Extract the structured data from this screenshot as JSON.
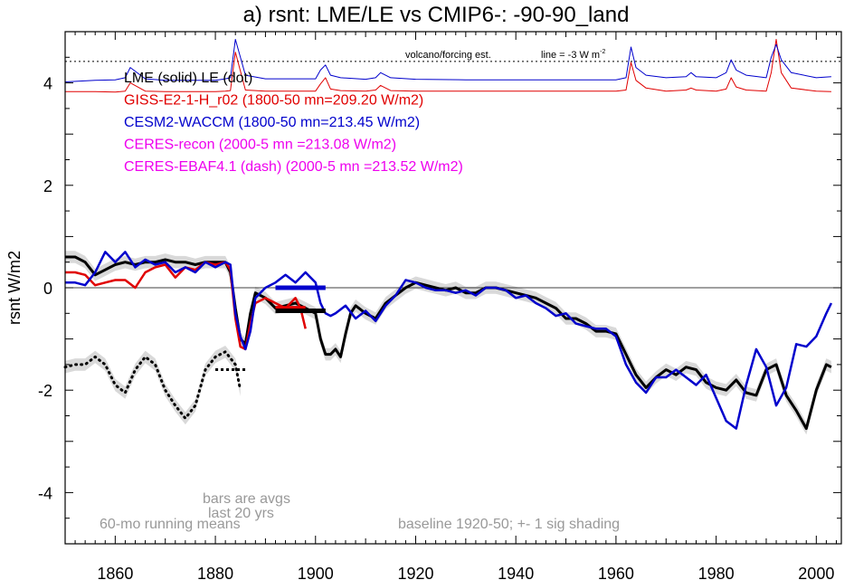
{
  "chart_data": {
    "type": "line",
    "title": "a) rsnt: LME/LE vs CMIP6-: -90-90_land",
    "ylabel": "rsnt W/m2",
    "xlabel": "",
    "xlim": [
      1850,
      2005
    ],
    "ylim": [
      -5,
      5
    ],
    "x_ticks": [
      1860,
      1880,
      1900,
      1920,
      1940,
      1960,
      1980,
      2000
    ],
    "y_ticks": [
      -4,
      -2,
      0,
      2,
      4
    ],
    "legend_placement": "top-left",
    "grid": false,
    "reference_line_y": 0,
    "volcano_label": "volcano/forcing est.",
    "volcano_note": "line = -3 W m",
    "volcano_note_sup": "-2",
    "legend": [
      {
        "label": "LME (solid)   LE (dot)",
        "color": "#000000"
      },
      {
        "label": "GISS-E2-1-H_r02 (1800-50 mn=209.20 W/m2)",
        "color": "#e00000"
      },
      {
        "label": "CESM2-WACCM (1800-50 mn=213.45 W/m2)",
        "color": "#0000cc"
      },
      {
        "label": "CERES-recon (2000-5 mn =213.08 W/m2)",
        "color": "#ee00ee"
      },
      {
        "label": "CERES-EBAF4.1 (dash) (2000-5 mn =213.52 W/m2)",
        "color": "#ee00ee"
      }
    ],
    "annotations": {
      "bars_note_1": "bars are avgs",
      "bars_note_2": "last 20 yrs",
      "running_means": "60-mo running means",
      "baseline": "baseline 1920-50; +- 1 sig shading"
    },
    "series": [
      {
        "name": "LME (solid)",
        "color": "#000000",
        "style": "solid",
        "x": [
          1850,
          1852,
          1854,
          1856,
          1858,
          1860,
          1862,
          1864,
          1866,
          1868,
          1870,
          1872,
          1874,
          1876,
          1878,
          1880,
          1882,
          1883,
          1884,
          1885,
          1886,
          1887,
          1888,
          1890,
          1892,
          1894,
          1896,
          1898,
          1900,
          1901,
          1902,
          1903,
          1904,
          1905,
          1906,
          1907,
          1908,
          1910,
          1912,
          1914,
          1916,
          1918,
          1920,
          1922,
          1924,
          1926,
          1928,
          1930,
          1932,
          1934,
          1936,
          1938,
          1940,
          1942,
          1944,
          1946,
          1948,
          1950,
          1952,
          1954,
          1956,
          1958,
          1960,
          1962,
          1964,
          1966,
          1968,
          1970,
          1972,
          1974,
          1976,
          1978,
          1980,
          1982,
          1984,
          1986,
          1988,
          1990,
          1992,
          1994,
          1996,
          1998,
          2000,
          2002,
          2003
        ],
        "values": [
          0.6,
          0.6,
          0.5,
          0.25,
          0.35,
          0.45,
          0.5,
          0.45,
          0.5,
          0.5,
          0.55,
          0.5,
          0.5,
          0.45,
          0.5,
          0.5,
          0.5,
          0.3,
          -0.4,
          -1.0,
          -1.1,
          -0.5,
          -0.1,
          -0.2,
          -0.4,
          -0.35,
          -0.3,
          -0.4,
          -0.5,
          -1.0,
          -1.3,
          -1.3,
          -1.2,
          -1.35,
          -0.9,
          -0.5,
          -0.35,
          -0.5,
          -0.6,
          -0.3,
          -0.15,
          0.0,
          0.1,
          0.05,
          0.0,
          -0.05,
          0.0,
          -0.1,
          -0.1,
          0.0,
          0.0,
          -0.05,
          -0.1,
          -0.15,
          -0.2,
          -0.3,
          -0.4,
          -0.6,
          -0.6,
          -0.7,
          -0.85,
          -0.85,
          -0.9,
          -1.3,
          -1.7,
          -1.95,
          -1.75,
          -1.6,
          -1.7,
          -1.55,
          -1.6,
          -1.85,
          -1.95,
          -2.0,
          -1.8,
          -2.05,
          -2.1,
          -1.6,
          -1.5,
          -2.1,
          -2.4,
          -2.75,
          -2.0,
          -1.5,
          -1.55
        ]
      },
      {
        "name": "LE (dot)",
        "color": "#000000",
        "style": "dot",
        "x": [
          1850,
          1852,
          1854,
          1856,
          1858,
          1860,
          1862,
          1864,
          1866,
          1868,
          1870,
          1872,
          1874,
          1876,
          1878,
          1880,
          1882,
          1884,
          1885
        ],
        "values": [
          -1.55,
          -1.5,
          -1.5,
          -1.35,
          -1.5,
          -1.9,
          -2.05,
          -1.6,
          -1.35,
          -1.5,
          -2.0,
          -2.3,
          -2.55,
          -2.3,
          -1.6,
          -1.35,
          -1.25,
          -1.5,
          -2.0
        ]
      },
      {
        "name": "GISS-E2-1-H_r02",
        "color": "#e00000",
        "style": "solid",
        "x": [
          1850,
          1852,
          1854,
          1856,
          1858,
          1860,
          1862,
          1864,
          1866,
          1868,
          1870,
          1872,
          1874,
          1876,
          1878,
          1880,
          1882,
          1883,
          1884,
          1885,
          1886,
          1887,
          1888,
          1890,
          1892,
          1894,
          1896,
          1897,
          1898
        ],
        "values": [
          0.3,
          0.3,
          0.25,
          0.05,
          0.1,
          0.15,
          0.15,
          0.0,
          0.3,
          0.4,
          0.45,
          0.2,
          0.4,
          0.35,
          0.5,
          0.45,
          0.5,
          0.35,
          -0.6,
          -1.15,
          -1.2,
          -0.7,
          -0.3,
          -0.2,
          -0.3,
          -0.4,
          -0.2,
          -0.4,
          -0.8
        ]
      },
      {
        "name": "CESM2-WACCM",
        "color": "#0000cc",
        "style": "solid",
        "x": [
          1850,
          1852,
          1854,
          1856,
          1858,
          1860,
          1862,
          1864,
          1866,
          1868,
          1870,
          1872,
          1874,
          1876,
          1878,
          1880,
          1882,
          1883,
          1884,
          1885,
          1886,
          1887,
          1888,
          1890,
          1892,
          1894,
          1896,
          1898,
          1900,
          1901,
          1902,
          1903,
          1904,
          1906,
          1908,
          1910,
          1912,
          1914,
          1916,
          1918,
          1920,
          1922,
          1924,
          1926,
          1928,
          1930,
          1932,
          1934,
          1936,
          1938,
          1940,
          1942,
          1944,
          1946,
          1948,
          1950,
          1952,
          1954,
          1956,
          1958,
          1960,
          1962,
          1964,
          1966,
          1968,
          1970,
          1972,
          1974,
          1976,
          1978,
          1980,
          1982,
          1984,
          1986,
          1988,
          1990,
          1992,
          1994,
          1996,
          1998,
          2000,
          2002,
          2003
        ],
        "values": [
          0.1,
          0.1,
          0.05,
          0.3,
          0.7,
          0.5,
          0.7,
          0.4,
          0.55,
          0.45,
          0.5,
          0.3,
          0.4,
          0.3,
          0.5,
          0.4,
          0.5,
          0.45,
          -0.5,
          -0.95,
          -1.2,
          -0.85,
          -0.2,
          0.0,
          0.1,
          0.25,
          0.1,
          0.3,
          0.1,
          -0.3,
          -0.5,
          -0.55,
          -0.5,
          -0.35,
          -0.6,
          -0.45,
          -0.65,
          -0.35,
          -0.15,
          0.15,
          0.1,
          0.0,
          -0.05,
          -0.05,
          -0.1,
          -0.05,
          -0.15,
          0.0,
          0.0,
          -0.05,
          -0.2,
          -0.15,
          -0.3,
          -0.4,
          -0.55,
          -0.5,
          -0.7,
          -0.75,
          -0.8,
          -0.8,
          -0.95,
          -1.5,
          -1.85,
          -2.05,
          -1.75,
          -1.75,
          -1.6,
          -1.75,
          -1.9,
          -1.7,
          -2.15,
          -2.6,
          -2.75,
          -1.9,
          -1.2,
          -1.55,
          -2.3,
          -1.95,
          -1.1,
          -1.15,
          -0.95,
          -0.5,
          -0.3
        ]
      },
      {
        "name": "GISS-E2-1-H_r02 forcing",
        "color": "#e00000",
        "style": "solid",
        "panel": "volcano",
        "x": [
          1850,
          1856,
          1860,
          1862,
          1863,
          1866,
          1870,
          1880,
          1882,
          1883,
          1884,
          1886,
          1890,
          1900,
          1901,
          1902,
          1903,
          1905,
          1910,
          1912,
          1913,
          1915,
          1920,
          1930,
          1940,
          1950,
          1960,
          1962,
          1963,
          1964,
          1966,
          1970,
          1974,
          1975,
          1976,
          1980,
          1982,
          1983,
          1984,
          1986,
          1990,
          1991,
          1992,
          1993,
          1995,
          2000,
          2003
        ],
        "values": [
          3.83,
          3.83,
          3.82,
          3.84,
          4.0,
          3.84,
          3.83,
          3.83,
          3.84,
          3.85,
          4.6,
          3.86,
          3.84,
          3.84,
          3.98,
          4.1,
          3.88,
          3.85,
          3.84,
          3.86,
          3.95,
          3.85,
          3.84,
          3.84,
          3.84,
          3.84,
          3.84,
          3.86,
          4.4,
          4.05,
          3.9,
          3.84,
          3.86,
          3.9,
          3.86,
          3.84,
          3.88,
          4.1,
          3.92,
          3.86,
          3.84,
          4.2,
          4.85,
          4.2,
          3.9,
          3.84,
          3.83
        ]
      },
      {
        "name": "CESM2-WACCM forcing",
        "color": "#0000cc",
        "style": "solid",
        "panel": "volcano",
        "x": [
          1850,
          1856,
          1860,
          1862,
          1863,
          1866,
          1870,
          1880,
          1882,
          1883,
          1884,
          1886,
          1890,
          1900,
          1901,
          1902,
          1903,
          1905,
          1910,
          1912,
          1913,
          1915,
          1920,
          1930,
          1940,
          1950,
          1960,
          1962,
          1963,
          1964,
          1966,
          1970,
          1974,
          1975,
          1976,
          1980,
          1982,
          1983,
          1984,
          1986,
          1990,
          1991,
          1992,
          1993,
          1995,
          2000,
          2003
        ],
        "values": [
          4.02,
          4.05,
          4.06,
          4.1,
          4.3,
          4.08,
          4.05,
          4.05,
          4.08,
          4.1,
          4.85,
          4.15,
          4.08,
          4.08,
          4.25,
          4.35,
          4.15,
          4.1,
          4.07,
          4.1,
          4.2,
          4.1,
          4.07,
          4.06,
          4.06,
          4.06,
          4.06,
          4.1,
          4.7,
          4.3,
          4.15,
          4.1,
          4.12,
          4.2,
          4.12,
          4.1,
          4.2,
          4.45,
          4.25,
          4.15,
          4.1,
          4.5,
          4.75,
          4.45,
          4.2,
          4.1,
          4.12
        ]
      }
    ],
    "avg_bars": [
      {
        "series": "CESM2-WACCM",
        "x": [
          1892,
          1902
        ],
        "value": 0.0,
        "color": "#0000cc"
      },
      {
        "series": "GISS-E2-1-H_r02",
        "x": [
          1892,
          1898
        ],
        "value": -0.4,
        "color": "#e00000"
      },
      {
        "series": "LME",
        "x": [
          1892,
          1902
        ],
        "value": -0.45,
        "color": "#000000"
      },
      {
        "series": "LE",
        "x": [
          1880,
          1886
        ],
        "value": -1.6,
        "color": "#000000"
      }
    ],
    "volcano_ref_line_y": 4.42
  }
}
